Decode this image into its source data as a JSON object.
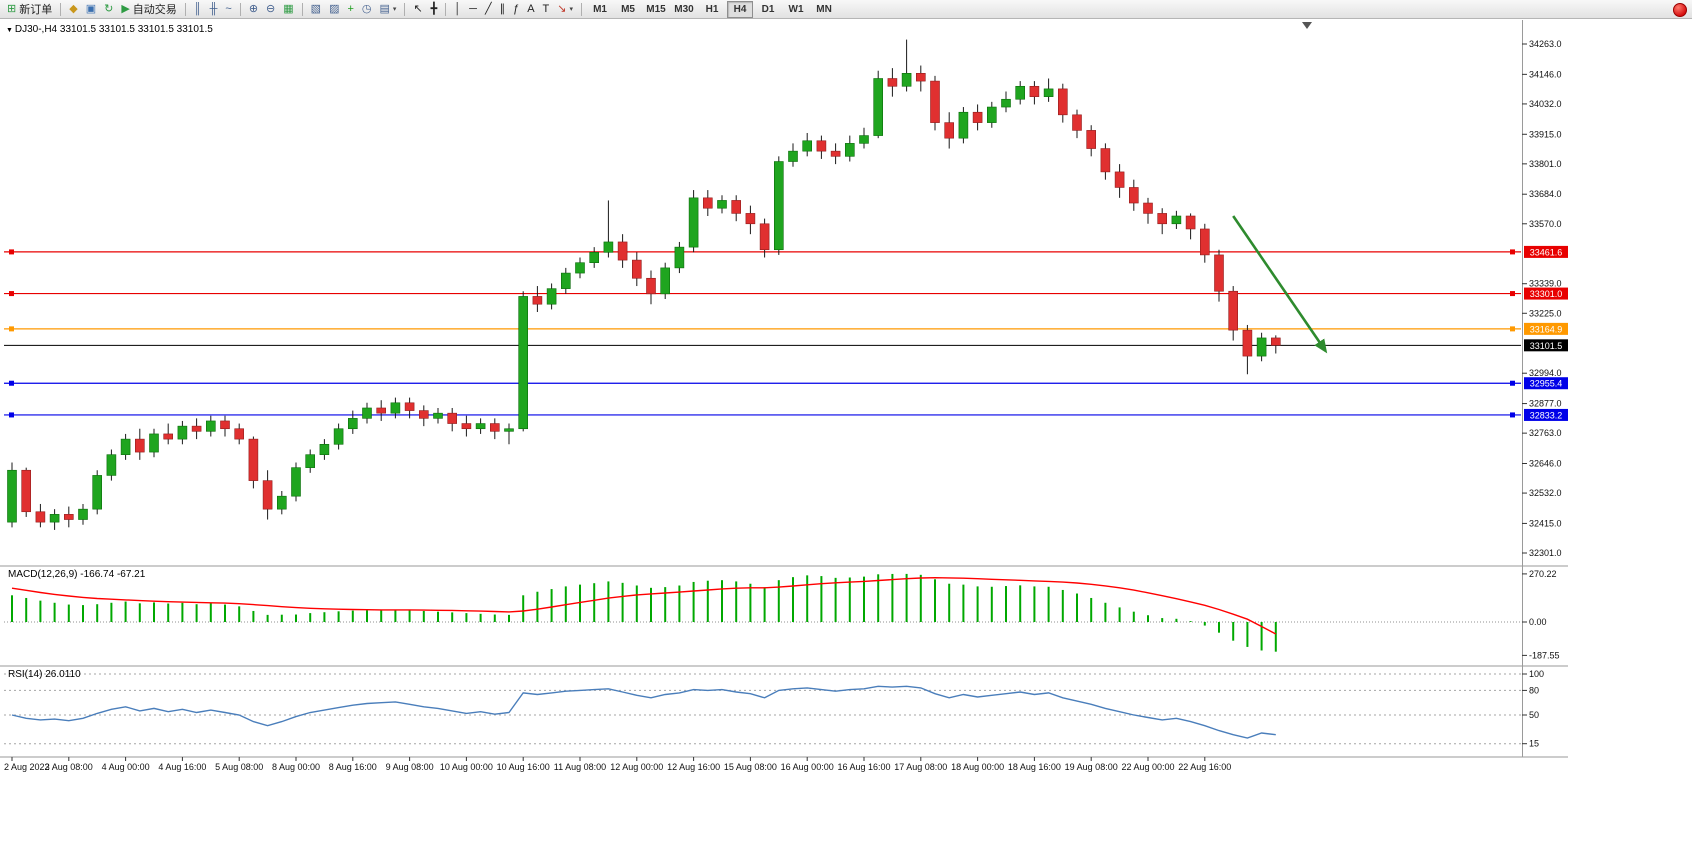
{
  "toolbar": {
    "items": [
      {
        "name": "new-order-button",
        "icon": "new-order-icon",
        "glyph": "⊞",
        "glyph_color": "#2e9b43",
        "label": "新订单"
      },
      {
        "sep": true
      },
      {
        "name": "market-watch-button",
        "icon": "market-watch-icon",
        "glyph": "◆",
        "glyph_color": "#c9971c"
      },
      {
        "name": "data-window-button",
        "icon": "data-window-icon",
        "glyph": "▣",
        "glyph_color": "#3a6fb0"
      },
      {
        "name": "refresh-button",
        "icon": "refresh-icon",
        "glyph": "↻",
        "glyph_color": "#2e9b43"
      },
      {
        "name": "auto-trading-button",
        "icon": "play-icon",
        "glyph": "▶",
        "glyph_color": "#2e9b43",
        "label": "自动交易"
      },
      {
        "sep": true
      },
      {
        "name": "bar-chart-button",
        "icon": "ohlc-bars-icon",
        "glyph": "║",
        "glyph_color": "#44618f"
      },
      {
        "name": "candlestick-chart-button",
        "icon": "candlestick-icon",
        "glyph": "╫",
        "glyph_color": "#44618f"
      },
      {
        "name": "line-chart-button",
        "icon": "line-chart-icon",
        "glyph": "~",
        "glyph_color": "#44618f"
      },
      {
        "sep": true
      },
      {
        "name": "zoom-in-button",
        "icon": "zoom-in-icon",
        "glyph": "⊕",
        "glyph_color": "#44618f"
      },
      {
        "name": "zoom-out-button",
        "icon": "zoom-out-icon",
        "glyph": "⊖",
        "glyph_color": "#44618f"
      },
      {
        "name": "tile-windows-button",
        "icon": "tile-windows-icon",
        "glyph": "▦",
        "glyph_color": "#2e9b43"
      },
      {
        "sep": true
      },
      {
        "name": "new-chart-button",
        "icon": "new-chart-icon",
        "glyph": "▧",
        "glyph_color": "#44618f"
      },
      {
        "name": "profiles-button",
        "icon": "profiles-icon",
        "glyph": "▨",
        "glyph_color": "#44618f"
      },
      {
        "name": "indicators-button",
        "icon": "add-indicator-icon",
        "glyph": "+",
        "glyph_color": "#1c9e1c"
      },
      {
        "name": "periods-button",
        "icon": "clock-icon",
        "glyph": "◷",
        "glyph_color": "#44618f"
      },
      {
        "name": "templates-button",
        "icon": "template-icon",
        "glyph": "▤",
        "glyph_color": "#44618f",
        "dropdown": true
      },
      {
        "sep": true
      },
      {
        "name": "cursor-button",
        "icon": "cursor-icon",
        "glyph": "↖",
        "glyph_color": "#222222"
      },
      {
        "name": "crosshair-button",
        "icon": "crosshair-icon",
        "glyph": "╋",
        "glyph_color": "#222222"
      },
      {
        "sep": true
      },
      {
        "name": "vertical-line-button",
        "icon": "vertical-line-icon",
        "glyph": "│",
        "glyph_color": "#222222"
      },
      {
        "name": "horizontal-line-button",
        "icon": "horizontal-line-icon",
        "glyph": "─",
        "glyph_color": "#222222"
      },
      {
        "name": "trendline-button",
        "icon": "trendline-icon",
        "glyph": "╱",
        "glyph_color": "#222222"
      },
      {
        "name": "channel-button",
        "icon": "channel-icon",
        "glyph": "∥",
        "glyph_color": "#222222"
      },
      {
        "name": "fibonacci-button",
        "icon": "fibonacci-icon",
        "glyph": "ƒ",
        "glyph_color": "#222222"
      },
      {
        "name": "text-button",
        "icon": "text-icon",
        "glyph": "A",
        "glyph_color": "#222222"
      },
      {
        "name": "text-label-button",
        "icon": "text-label-icon",
        "glyph": "T",
        "glyph_color": "#222222"
      },
      {
        "name": "arrows-button",
        "icon": "arrow-object-icon",
        "glyph": "↘",
        "glyph_color": "#c03a2b",
        "dropdown": true
      },
      {
        "sep": true
      }
    ],
    "timeframes": [
      "M1",
      "M5",
      "M15",
      "M30",
      "H1",
      "H4",
      "D1",
      "W1",
      "MN"
    ],
    "active_timeframe": "H4"
  },
  "chart": {
    "symbol_label": "DJ30-,H4 33101.5 33101.5 33101.5 33101.5"
  },
  "macd_panel": {
    "label": "MACD(12,26,9)",
    "values_text": "-166.74 -67.21",
    "axis_labels": [
      "270.22",
      "0.00",
      "-187.55"
    ]
  },
  "rsi_panel": {
    "label": "RSI(14)",
    "value_text": "26.0110",
    "axis_labels": [
      "100",
      "80",
      "50",
      "15"
    ]
  },
  "chart_data": {
    "type": "candlestick",
    "symbol": "DJ30-",
    "timeframe": "H4",
    "price_axis_ticks": [
      34263.0,
      34146.0,
      34032.0,
      33915.0,
      33801.0,
      33684.0,
      33570.0,
      33339.0,
      33225.0,
      32994.0,
      32877.0,
      32763.0,
      32646.0,
      32532.0,
      32415.0,
      32301.0
    ],
    "levels": [
      {
        "price": 33461.6,
        "label": "33461.6",
        "color": "#e80000"
      },
      {
        "price": 33301.0,
        "label": "33301.0",
        "color": "#e80000"
      },
      {
        "price": 33164.9,
        "label": "33164.9",
        "color": "#ff9900"
      },
      {
        "price": 33101.5,
        "label": "33101.5",
        "color": "#000000",
        "is_price_line": true
      },
      {
        "price": 32955.4,
        "label": "32955.4",
        "color": "#0000e8"
      },
      {
        "price": 32833.2,
        "label": "32833.2",
        "color": "#0000e8"
      }
    ],
    "time_labels": [
      "2 Aug 2022",
      "3 Aug 08:00",
      "4 Aug 00:00",
      "4 Aug 16:00",
      "5 Aug 08:00",
      "8 Aug 00:00",
      "8 Aug 16:00",
      "9 Aug 08:00",
      "10 Aug 00:00",
      "10 Aug 16:00",
      "11 Aug 08:00",
      "12 Aug 00:00",
      "12 Aug 16:00",
      "15 Aug 08:00",
      "16 Aug 00:00",
      "16 Aug 16:00",
      "17 Aug 08:00",
      "18 Aug 00:00",
      "18 Aug 16:00",
      "19 Aug 08:00",
      "22 Aug 00:00",
      "22 Aug 16:00"
    ],
    "ohlc": [
      [
        32420,
        32650,
        32400,
        32620
      ],
      [
        32620,
        32630,
        32440,
        32460
      ],
      [
        32460,
        32490,
        32400,
        32420
      ],
      [
        32420,
        32470,
        32390,
        32450
      ],
      [
        32450,
        32480,
        32400,
        32430
      ],
      [
        32430,
        32490,
        32410,
        32470
      ],
      [
        32470,
        32620,
        32450,
        32600
      ],
      [
        32600,
        32700,
        32580,
        32680
      ],
      [
        32680,
        32760,
        32660,
        32740
      ],
      [
        32740,
        32780,
        32660,
        32690
      ],
      [
        32690,
        32780,
        32670,
        32760
      ],
      [
        32760,
        32800,
        32720,
        32740
      ],
      [
        32740,
        32810,
        32720,
        32790
      ],
      [
        32790,
        32820,
        32740,
        32770
      ],
      [
        32770,
        32830,
        32750,
        32810
      ],
      [
        32810,
        32830,
        32750,
        32780
      ],
      [
        32780,
        32800,
        32720,
        32740
      ],
      [
        32740,
        32750,
        32550,
        32580
      ],
      [
        32580,
        32620,
        32430,
        32470
      ],
      [
        32470,
        32540,
        32450,
        32520
      ],
      [
        32520,
        32650,
        32500,
        32630
      ],
      [
        32630,
        32700,
        32610,
        32680
      ],
      [
        32680,
        32740,
        32660,
        32720
      ],
      [
        32720,
        32800,
        32700,
        32780
      ],
      [
        32780,
        32850,
        32760,
        32820
      ],
      [
        32820,
        32880,
        32800,
        32860
      ],
      [
        32860,
        32890,
        32810,
        32840
      ],
      [
        32840,
        32900,
        32820,
        32880
      ],
      [
        32880,
        32900,
        32820,
        32850
      ],
      [
        32850,
        32870,
        32790,
        32820
      ],
      [
        32820,
        32860,
        32800,
        32840
      ],
      [
        32840,
        32860,
        32770,
        32800
      ],
      [
        32800,
        32830,
        32750,
        32780
      ],
      [
        32780,
        32820,
        32760,
        32800
      ],
      [
        32800,
        32820,
        32740,
        32770
      ],
      [
        32770,
        32800,
        32720,
        32780
      ],
      [
        32780,
        33310,
        32770,
        33290
      ],
      [
        33290,
        33330,
        33230,
        33260
      ],
      [
        33260,
        33340,
        33240,
        33320
      ],
      [
        33320,
        33400,
        33300,
        33380
      ],
      [
        33380,
        33440,
        33360,
        33420
      ],
      [
        33420,
        33480,
        33400,
        33460
      ],
      [
        33460,
        33660,
        33440,
        33500
      ],
      [
        33500,
        33530,
        33400,
        33430
      ],
      [
        33430,
        33460,
        33330,
        33360
      ],
      [
        33360,
        33390,
        33260,
        33300
      ],
      [
        33300,
        33420,
        33280,
        33400
      ],
      [
        33400,
        33500,
        33380,
        33480
      ],
      [
        33480,
        33700,
        33460,
        33670
      ],
      [
        33670,
        33700,
        33600,
        33630
      ],
      [
        33630,
        33680,
        33610,
        33660
      ],
      [
        33660,
        33680,
        33580,
        33610
      ],
      [
        33610,
        33640,
        33530,
        33570
      ],
      [
        33570,
        33590,
        33440,
        33470
      ],
      [
        33470,
        33830,
        33450,
        33810
      ],
      [
        33810,
        33880,
        33790,
        33850
      ],
      [
        33850,
        33920,
        33830,
        33890
      ],
      [
        33890,
        33910,
        33820,
        33850
      ],
      [
        33850,
        33880,
        33800,
        33830
      ],
      [
        33830,
        33910,
        33810,
        33880
      ],
      [
        33880,
        33940,
        33860,
        33910
      ],
      [
        33910,
        34160,
        33900,
        34130
      ],
      [
        34130,
        34170,
        34060,
        34100
      ],
      [
        34100,
        34280,
        34080,
        34150
      ],
      [
        34150,
        34180,
        34080,
        34120
      ],
      [
        34120,
        34140,
        33930,
        33960
      ],
      [
        33960,
        34000,
        33860,
        33900
      ],
      [
        33900,
        34020,
        33880,
        34000
      ],
      [
        34000,
        34030,
        33930,
        33960
      ],
      [
        33960,
        34040,
        33940,
        34020
      ],
      [
        34020,
        34080,
        34000,
        34050
      ],
      [
        34050,
        34120,
        34030,
        34100
      ],
      [
        34100,
        34120,
        34030,
        34060
      ],
      [
        34060,
        34130,
        34040,
        34090
      ],
      [
        34090,
        34110,
        33960,
        33990
      ],
      [
        33990,
        34010,
        33900,
        33930
      ],
      [
        33930,
        33950,
        33830,
        33860
      ],
      [
        33860,
        33880,
        33740,
        33770
      ],
      [
        33770,
        33800,
        33670,
        33710
      ],
      [
        33710,
        33740,
        33620,
        33650
      ],
      [
        33650,
        33670,
        33570,
        33610
      ],
      [
        33610,
        33630,
        33530,
        33570
      ],
      [
        33570,
        33620,
        33550,
        33600
      ],
      [
        33600,
        33610,
        33510,
        33550
      ],
      [
        33550,
        33570,
        33420,
        33450
      ],
      [
        33450,
        33470,
        33270,
        33310
      ],
      [
        33310,
        33330,
        33120,
        33160
      ],
      [
        33160,
        33180,
        32990,
        33060
      ],
      [
        33060,
        33150,
        33040,
        33130
      ],
      [
        33130,
        33140,
        33070,
        33101.5
      ]
    ],
    "macd": {
      "axis_max": 270.22,
      "axis_min": -187.55,
      "histogram": [
        150,
        135,
        120,
        108,
        98,
        95,
        100,
        108,
        115,
        105,
        110,
        104,
        108,
        100,
        104,
        98,
        88,
        62,
        40,
        41,
        42,
        50,
        55,
        60,
        64,
        66,
        68,
        70,
        66,
        62,
        58,
        54,
        50,
        46,
        42,
        40,
        150,
        170,
        185,
        200,
        210,
        218,
        228,
        220,
        205,
        192,
        196,
        205,
        225,
        232,
        235,
        228,
        215,
        195,
        235,
        252,
        262,
        258,
        248,
        250,
        255,
        268,
        270,
        270.22,
        265,
        240,
        215,
        210,
        200,
        198,
        202,
        206,
        200,
        198,
        180,
        160,
        135,
        108,
        82,
        58,
        38,
        22,
        18,
        5,
        -20,
        -60,
        -105,
        -140,
        -160,
        -166.74
      ],
      "signal": [
        190,
        178,
        166,
        155,
        146,
        138,
        132,
        128,
        124,
        120,
        117,
        114,
        112,
        110,
        108,
        106,
        103,
        98,
        92,
        86,
        81,
        77,
        74,
        72,
        70,
        69,
        68,
        68,
        68,
        67,
        66,
        65,
        63,
        61,
        59,
        57,
        62,
        72,
        84,
        97,
        110,
        122,
        134,
        144,
        152,
        158,
        163,
        168,
        174,
        180,
        186,
        190,
        192,
        192,
        196,
        202,
        209,
        215,
        220,
        224,
        228,
        233,
        238,
        243,
        247,
        249,
        248,
        246,
        243,
        240,
        237,
        234,
        231,
        228,
        224,
        219,
        212,
        203,
        192,
        179,
        164,
        148,
        131,
        113,
        94,
        70,
        44,
        16,
        -25,
        -67.21
      ]
    },
    "rsi": {
      "levels": [
        100,
        80,
        50,
        15
      ],
      "values": [
        50,
        46,
        44,
        45,
        43,
        46,
        52,
        57,
        60,
        55,
        58,
        54,
        57,
        53,
        56,
        53,
        50,
        42,
        37,
        42,
        48,
        53,
        56,
        59,
        62,
        64,
        65,
        66,
        63,
        60,
        58,
        55,
        52,
        54,
        51,
        53,
        77,
        75,
        77,
        79,
        80,
        81,
        82,
        78,
        74,
        71,
        75,
        77,
        81,
        80,
        81,
        78,
        76,
        71,
        80,
        82,
        83,
        81,
        79,
        81,
        82,
        85,
        84,
        85,
        83,
        76,
        71,
        75,
        72,
        74,
        76,
        78,
        75,
        77,
        71,
        67,
        63,
        58,
        54,
        50,
        47,
        44,
        46,
        42,
        37,
        31,
        26,
        22,
        28,
        26.011
      ]
    },
    "objects": [
      {
        "type": "trend-arrow",
        "color": "#2e8b2e",
        "from_index": 86,
        "from_price": 33600,
        "to_index": 92.5,
        "to_price": 33080
      }
    ],
    "colors": {
      "bull": "#1fa51f",
      "bear": "#e03030",
      "wick": "#1a1a1a",
      "macd_histogram": "#00a800",
      "macd_signal": "#ff0000",
      "rsi": "#4a7ebb",
      "background": "#ffffff",
      "axis_text": "#111111"
    }
  }
}
